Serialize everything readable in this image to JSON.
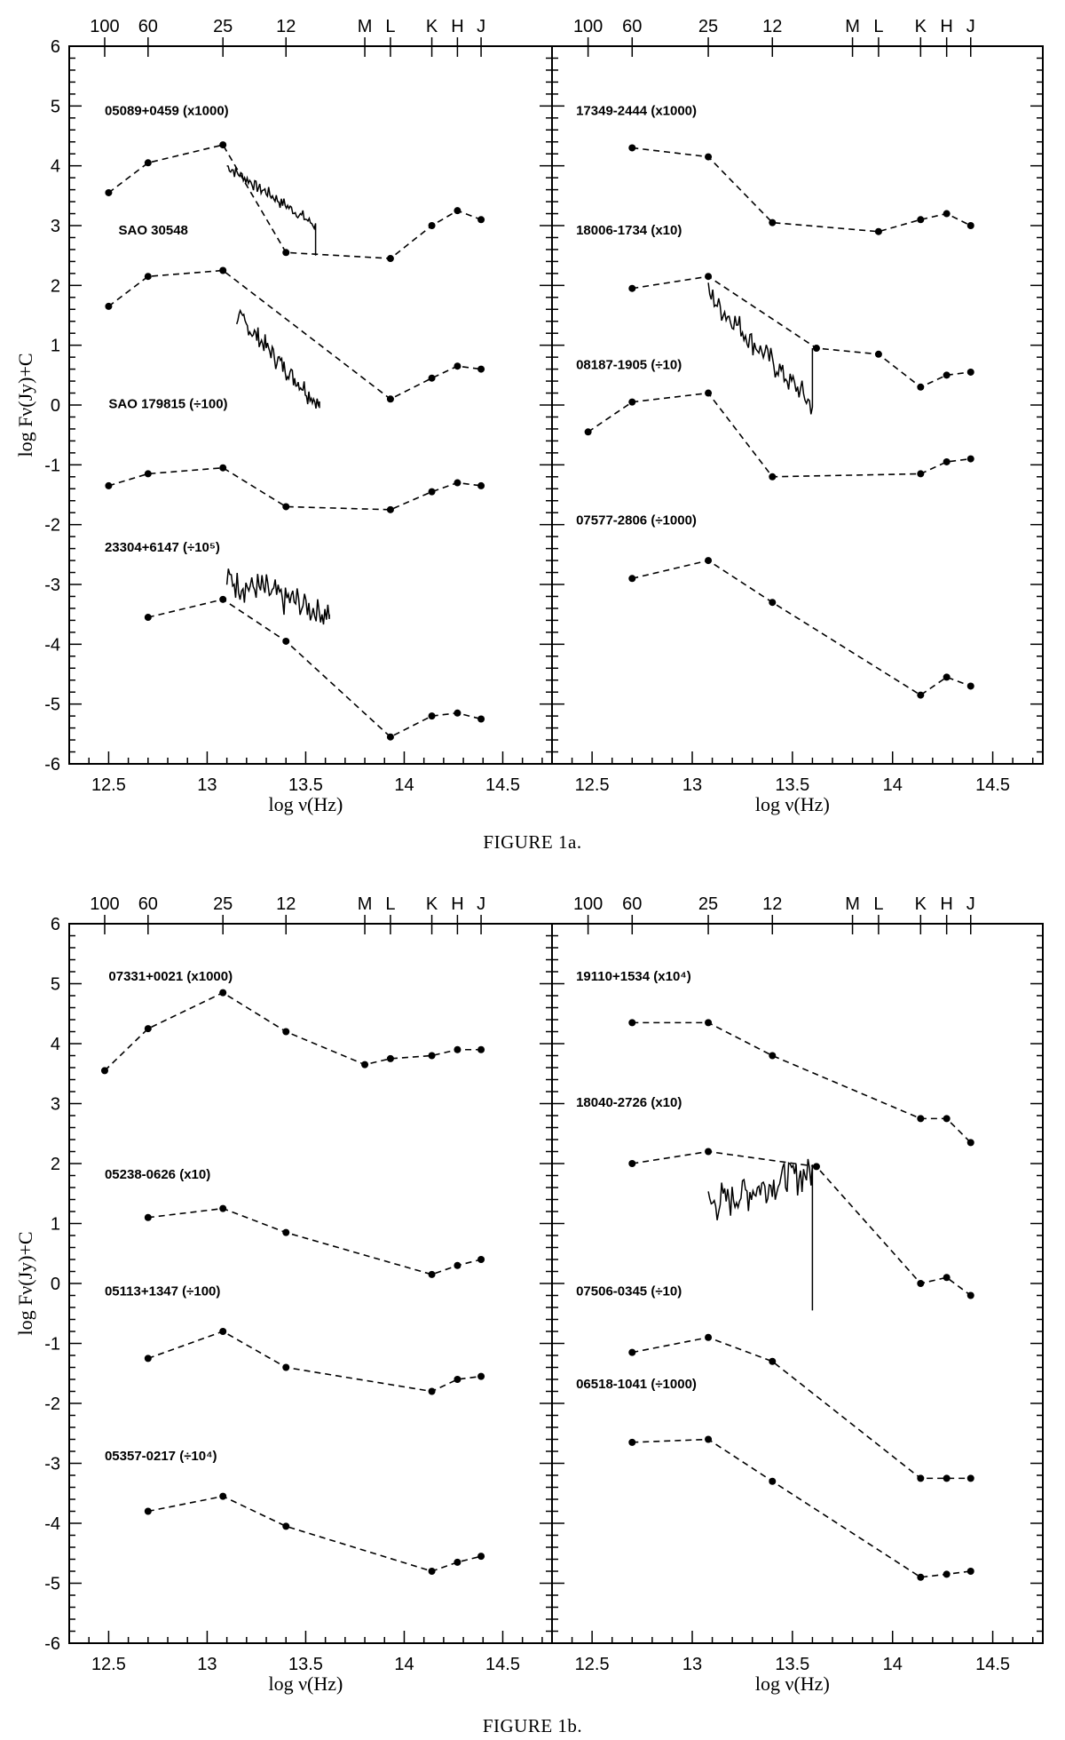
{
  "figures": [
    {
      "caption": "FIGURE 1a."
    },
    {
      "caption": "FIGURE 1b."
    }
  ],
  "axis_text": {
    "xlabel": "log ν(Hz)",
    "ylabel": "log Fν(Jy)+C",
    "x_ticks": [
      12.5,
      13,
      13.5,
      14,
      14.5
    ],
    "y_ticks": [
      -6,
      -5,
      -4,
      -3,
      -2,
      -1,
      0,
      1,
      2,
      3,
      4,
      5,
      6
    ],
    "top_bands": [
      {
        "label": "100",
        "x": 12.48
      },
      {
        "label": "60",
        "x": 12.7
      },
      {
        "label": "25",
        "x": 13.08
      },
      {
        "label": "12",
        "x": 13.4
      },
      {
        "label": "M",
        "x": 13.8
      },
      {
        "label": "L",
        "x": 13.93
      },
      {
        "label": "K",
        "x": 14.14
      },
      {
        "label": "H",
        "x": 14.27
      },
      {
        "label": "J",
        "x": 14.39
      }
    ]
  },
  "chart_data": [
    {
      "type": "line",
      "panel": "1a-left",
      "xlabel": "log ν(Hz)",
      "ylabel": "log Fν(Jy)+C",
      "xlim": [
        12.3,
        14.75
      ],
      "ylim": [
        -6,
        6
      ],
      "series": [
        {
          "name": "05089+0459 (x1000)",
          "label_x": 12.48,
          "label_y": 4.85,
          "x": [
            12.5,
            12.7,
            13.08,
            13.4,
            13.93,
            14.14,
            14.27,
            14.39
          ],
          "y": [
            3.55,
            4.05,
            4.35,
            2.55,
            2.45,
            3.0,
            3.25,
            3.1
          ],
          "spectrum": {
            "x": [
              13.1,
              13.55
            ],
            "y": [
              4.0,
              3.0
            ],
            "noise": 0.15,
            "end_drop": 2.5
          }
        },
        {
          "name": "SAO 30548",
          "label_x": 12.55,
          "label_y": 2.85,
          "x": [
            12.5,
            12.7,
            13.08,
            13.93,
            14.14,
            14.27,
            14.39
          ],
          "y": [
            1.65,
            2.15,
            2.25,
            0.1,
            0.45,
            0.65,
            0.6
          ],
          "spectrum": {
            "x": [
              13.15,
              13.57
            ],
            "y": [
              1.5,
              0.0
            ],
            "noise": 0.25,
            "end_drop": -0.05
          }
        },
        {
          "name": "SAO 179815 (÷100)",
          "label_x": 12.5,
          "label_y": -0.05,
          "x": [
            12.5,
            12.7,
            13.08,
            13.4,
            13.93,
            14.14,
            14.27,
            14.39
          ],
          "y": [
            -1.35,
            -1.15,
            -1.05,
            -1.7,
            -1.75,
            -1.45,
            -1.3,
            -1.35
          ],
          "spectrum": null
        },
        {
          "name": "23304+6147 (÷10⁵)",
          "label_x": 12.48,
          "label_y": -2.45,
          "x": [
            12.7,
            13.08,
            13.4,
            13.93,
            14.14,
            14.27,
            14.39
          ],
          "y": [
            -3.55,
            -3.25,
            -3.95,
            -5.55,
            -5.2,
            -5.15,
            -5.25
          ],
          "spectrum": {
            "x": [
              13.1,
              13.62
            ],
            "y": [
              -2.9,
              -3.5
            ],
            "noise": 0.4,
            "end_drop": -3.5
          }
        }
      ]
    },
    {
      "type": "line",
      "panel": "1a-right",
      "xlabel": "log ν(Hz)",
      "ylabel": "",
      "xlim": [
        12.3,
        14.75
      ],
      "ylim": [
        -6,
        6
      ],
      "series": [
        {
          "name": "17349-2444 (x1000)",
          "label_x": 12.42,
          "label_y": 4.85,
          "x": [
            12.7,
            13.08,
            13.4,
            13.93,
            14.14,
            14.27,
            14.39
          ],
          "y": [
            4.3,
            4.15,
            3.05,
            2.9,
            3.1,
            3.2,
            3.0
          ],
          "spectrum": null
        },
        {
          "name": "18006-1734 (x10)",
          "label_x": 12.42,
          "label_y": 2.85,
          "x": [
            12.7,
            13.08,
            13.62,
            13.93,
            14.14,
            14.27,
            14.39
          ],
          "y": [
            1.95,
            2.15,
            0.95,
            0.85,
            0.3,
            0.5,
            0.55
          ],
          "spectrum": {
            "x": [
              13.08,
              13.6
            ],
            "y": [
              1.85,
              0.0
            ],
            "noise": 0.3,
            "end_drop": 0.95
          }
        },
        {
          "name": "08187-1905 (÷10)",
          "label_x": 12.42,
          "label_y": 0.6,
          "x": [
            12.48,
            12.7,
            13.08,
            13.4,
            14.14,
            14.27,
            14.39
          ],
          "y": [
            -0.45,
            0.05,
            0.2,
            -1.2,
            -1.15,
            -0.95,
            -0.9
          ],
          "spectrum": null
        },
        {
          "name": "07577-2806 (÷1000)",
          "label_x": 12.42,
          "label_y": -2.0,
          "x": [
            12.7,
            13.08,
            13.4,
            14.14,
            14.27,
            14.39
          ],
          "y": [
            -2.9,
            -2.6,
            -3.3,
            -4.85,
            -4.55,
            -4.7
          ],
          "spectrum": null
        }
      ]
    },
    {
      "type": "line",
      "panel": "1b-left",
      "xlabel": "log ν(Hz)",
      "ylabel": "log Fν(Jy)+C",
      "xlim": [
        12.3,
        14.75
      ],
      "ylim": [
        -6,
        6
      ],
      "series": [
        {
          "name": "07331+0021 (x1000)",
          "label_x": 12.5,
          "label_y": 5.05,
          "x": [
            12.48,
            12.7,
            13.08,
            13.4,
            13.8,
            13.93,
            14.14,
            14.27,
            14.39
          ],
          "y": [
            3.55,
            4.25,
            4.85,
            4.2,
            3.65,
            3.75,
            3.8,
            3.9,
            3.9
          ],
          "spectrum": null
        },
        {
          "name": "05238-0626 (x10)",
          "label_x": 12.48,
          "label_y": 1.75,
          "x": [
            12.7,
            13.08,
            13.4,
            14.14,
            14.27,
            14.39
          ],
          "y": [
            1.1,
            1.25,
            0.85,
            0.15,
            0.3,
            0.4
          ],
          "spectrum": null
        },
        {
          "name": "05113+1347 (÷100)",
          "label_x": 12.48,
          "label_y": -0.2,
          "x": [
            12.7,
            13.08,
            13.4,
            14.14,
            14.27,
            14.39
          ],
          "y": [
            -1.25,
            -0.8,
            -1.4,
            -1.8,
            -1.6,
            -1.55
          ],
          "spectrum": null
        },
        {
          "name": "05357-0217 (÷10⁴)",
          "label_x": 12.48,
          "label_y": -2.95,
          "x": [
            12.7,
            13.08,
            13.4,
            14.14,
            14.27,
            14.39
          ],
          "y": [
            -3.8,
            -3.55,
            -4.05,
            -4.8,
            -4.65,
            -4.55
          ],
          "spectrum": null
        }
      ]
    },
    {
      "type": "line",
      "panel": "1b-right",
      "xlabel": "log ν(Hz)",
      "ylabel": "",
      "xlim": [
        12.3,
        14.75
      ],
      "ylim": [
        -6,
        6
      ],
      "series": [
        {
          "name": "19110+1534 (x10⁴)",
          "label_x": 12.42,
          "label_y": 5.05,
          "x": [
            12.7,
            13.08,
            13.4,
            14.14,
            14.27,
            14.39
          ],
          "y": [
            4.35,
            4.35,
            3.8,
            2.75,
            2.75,
            2.35
          ],
          "spectrum": null
        },
        {
          "name": "18040-2726 (x10)",
          "label_x": 12.42,
          "label_y": 2.95,
          "x": [
            12.7,
            13.08,
            13.62,
            14.14,
            14.27,
            14.39
          ],
          "y": [
            2.0,
            2.2,
            1.95,
            0.0,
            0.1,
            -0.2
          ],
          "spectrum": {
            "x": [
              13.08,
              13.6
            ],
            "y": [
              1.3,
              1.9
            ],
            "noise": 0.45,
            "end_drop": -0.45
          }
        },
        {
          "name": "07506-0345 (÷10)",
          "label_x": 12.42,
          "label_y": -0.2,
          "x": [
            12.7,
            13.08,
            13.4,
            14.14,
            14.27,
            14.39
          ],
          "y": [
            -1.15,
            -0.9,
            -1.3,
            -3.25,
            -3.25,
            -3.25
          ],
          "spectrum": null
        },
        {
          "name": "06518-1041 (÷1000)",
          "label_x": 12.42,
          "label_y": -1.75,
          "x": [
            12.7,
            13.08,
            13.4,
            14.14,
            14.27,
            14.39
          ],
          "y": [
            -2.65,
            -2.6,
            -3.3,
            -4.9,
            -4.85,
            -4.8
          ],
          "spectrum": null
        }
      ]
    }
  ]
}
